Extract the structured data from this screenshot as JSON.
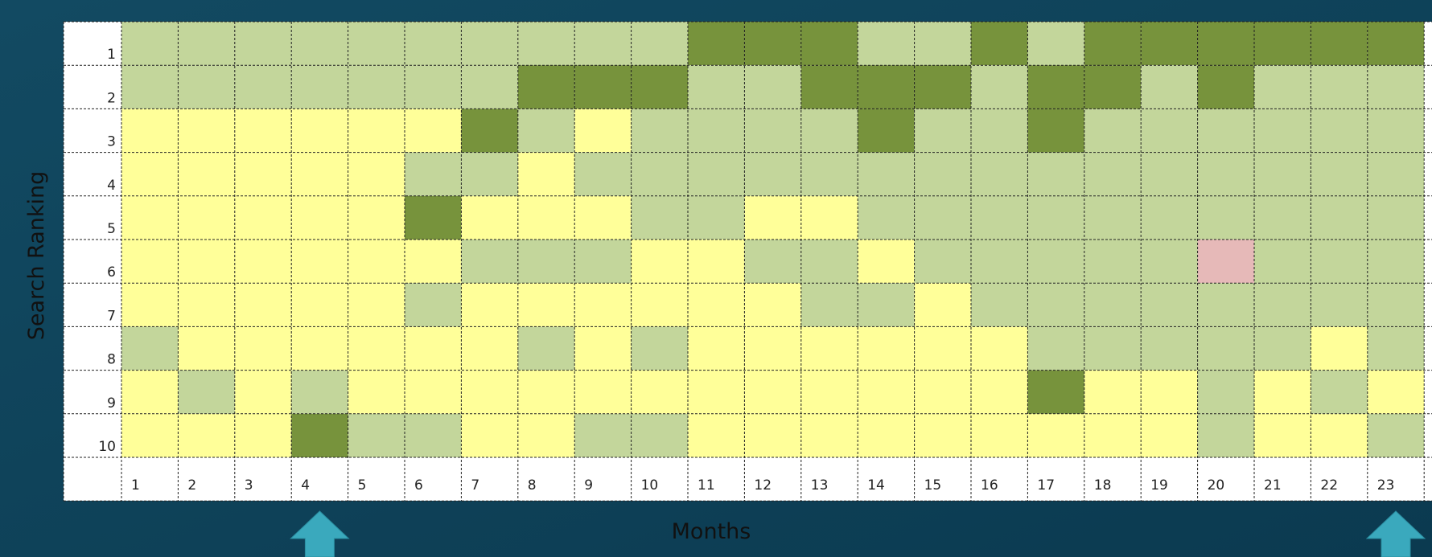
{
  "chart_data": {
    "type": "heatmap",
    "ylabel": "Search Ranking",
    "xlabel": "Months",
    "x": [
      1,
      2,
      3,
      4,
      5,
      6,
      7,
      8,
      9,
      10,
      11,
      12,
      13,
      14,
      15,
      16,
      17,
      18,
      19,
      20,
      21,
      22,
      23
    ],
    "y": [
      1,
      2,
      3,
      4,
      5,
      6,
      7,
      8,
      9,
      10
    ],
    "cells": [
      "LLLLLLLLLLDDDLLDLDDDDDD",
      "LLLLLLLDDDLLDDDLDDLDLLL",
      "YYYYYYDLYLLLLDLLDLLLLLL",
      "YYYYYLLYLLLLLLLLLLLLLLL",
      "YYYYYDYYYLLYYLLLLLLLLLL",
      "YYYYYYLLLYYLLYLLLLLPLLL",
      "YYYYYLYYYYYYLLYLLLLLLLL",
      "LYYYYYYLYLYYYYYYLLLLLYL",
      "YLYLYYYYYYYYYYYYDYYLYLY",
      "YYYDLLYYLLYYYYYYYYYLYYL"
    ],
    "colors": {
      "D": "#77933c",
      "L": "#c3d69b",
      "Y": "#ffff99",
      "P": "#e6b9b8"
    },
    "arrows": [
      4,
      23
    ]
  }
}
